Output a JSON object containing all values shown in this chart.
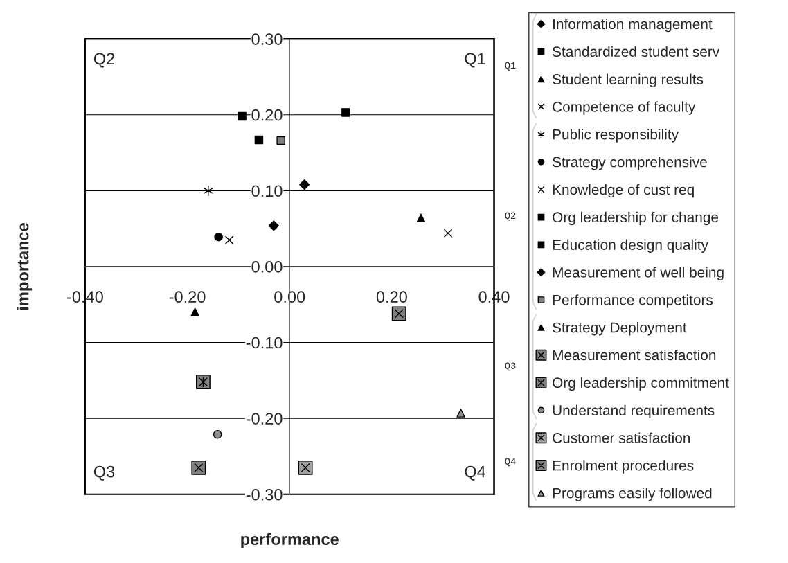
{
  "chart_data": {
    "type": "scatter",
    "xlabel": "performance",
    "ylabel": "importance",
    "xlim": [
      -0.4,
      0.4
    ],
    "ylim": [
      -0.3,
      0.3
    ],
    "xticks": [
      {
        "value": -0.4,
        "label": "-0.40"
      },
      {
        "value": -0.2,
        "label": "-0.20"
      },
      {
        "value": 0,
        "label": "0.00"
      },
      {
        "value": 0.2,
        "label": "0.20"
      },
      {
        "value": 0.4,
        "label": "0.40"
      }
    ],
    "yticks": [
      {
        "value": -0.3,
        "label": "-0.30"
      },
      {
        "value": -0.2,
        "label": "-0.20"
      },
      {
        "value": -0.1,
        "label": "-0.10"
      },
      {
        "value": 0,
        "label": "0.00"
      },
      {
        "value": 0.1,
        "label": "0.10"
      },
      {
        "value": 0.2,
        "label": "0.20"
      },
      {
        "value": 0.3,
        "label": "0.30"
      }
    ],
    "grid": "y",
    "legend": "right",
    "annotations": [
      "Q2",
      "Q1",
      "Q3",
      "Q4",
      "Q1",
      "Q2",
      "Q3",
      "Q4"
    ],
    "series": [
      {
        "name": "Information management",
        "color": "#000000",
        "marker": "diamond",
        "x": [
          0.029
        ],
        "values": [
          0.108
        ]
      },
      {
        "name": "Standardized student serv",
        "color": "#000000",
        "marker": "square",
        "x": [
          0.11
        ],
        "values": [
          0.203
        ]
      },
      {
        "name": "Student learning results",
        "color": "#000000",
        "marker": "triangle",
        "x": [
          0.257
        ],
        "values": [
          0.064
        ]
      },
      {
        "name": "Competence of faculty",
        "color": "#000000",
        "marker": "cross",
        "x": [
          0.31
        ],
        "values": [
          0.044
        ]
      },
      {
        "name": "Public responsibility",
        "color": "#000000",
        "x": [
          -0.159
        ],
        "values": [
          0.1
        ]
      },
      {
        "name": "Strategy comprehensive",
        "color": "#000000",
        "marker": "circle",
        "x": [
          -0.139
        ],
        "values": [
          0.039
        ]
      },
      {
        "name": "Knowledge of cust req",
        "color": "#000000",
        "marker": "cross",
        "x": [
          -0.118
        ],
        "values": [
          0.035
        ]
      },
      {
        "name": "Org leadership for change",
        "color": "#000000",
        "marker": "square",
        "x": [
          -0.093
        ],
        "values": [
          0.198
        ]
      },
      {
        "name": "Education design quality",
        "color": "#000000",
        "marker": "square",
        "x": [
          -0.06
        ],
        "values": [
          0.167
        ]
      },
      {
        "name": "Measurement of well being",
        "color": "#000000",
        "marker": "diamond",
        "x": [
          -0.031
        ],
        "values": [
          0.054
        ]
      },
      {
        "name": "Performance competitors",
        "color": "#808080",
        "marker": "square",
        "x": [
          -0.017
        ],
        "values": [
          0.166
        ]
      },
      {
        "name": "Strategy Deployment",
        "color": "#000000",
        "marker": "triangle",
        "x": [
          -0.185
        ],
        "values": [
          -0.06
        ]
      },
      {
        "name": "Measurement satisfaction",
        "color": "#808080",
        "marker": "cross",
        "x": [
          -0.178
        ],
        "values": [
          -0.265
        ]
      },
      {
        "name": "Org leadership commitment",
        "color": "#808080",
        "x": [
          -0.169
        ],
        "values": [
          -0.152
        ]
      },
      {
        "name": "Understand requirements",
        "color": "#909090",
        "marker": "circle",
        "x": [
          -0.141
        ],
        "values": [
          -0.221
        ]
      },
      {
        "name": "Customer satisfaction",
        "color": "#a0a0a0",
        "marker": "cross",
        "x": [
          0.031
        ],
        "values": [
          -0.265
        ]
      },
      {
        "name": "Enrolment procedures",
        "color": "#808080",
        "marker": "cross",
        "x": [
          0.214
        ],
        "values": [
          -0.062
        ]
      },
      {
        "name": "Programs easily followed",
        "color": "#909090",
        "marker": "triangle",
        "x": [
          0.335
        ],
        "values": [
          -0.193
        ]
      }
    ]
  }
}
